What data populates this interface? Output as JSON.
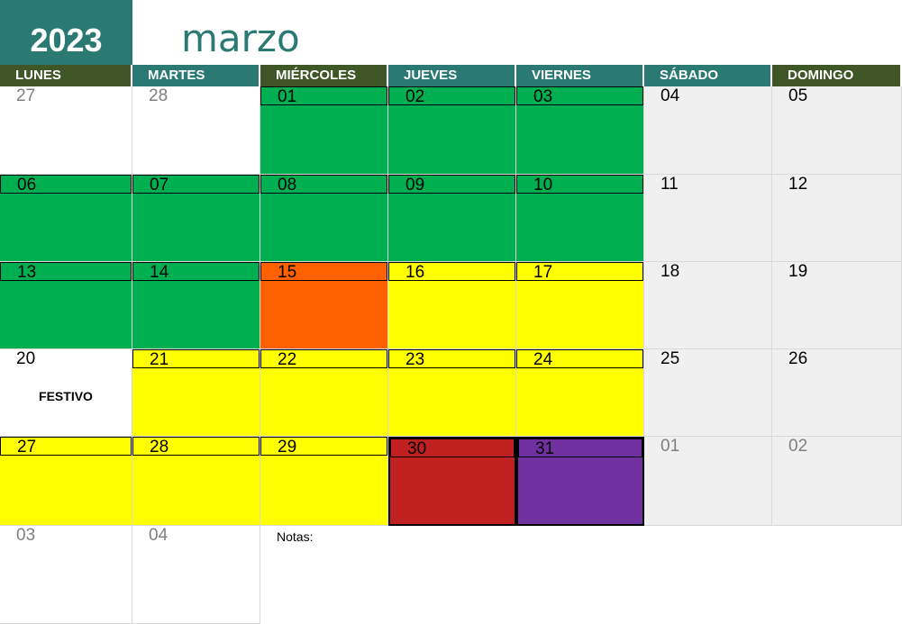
{
  "year": "2023",
  "month": "marzo",
  "colors": {
    "teal": "#2a7a73",
    "olive": "#3f5626",
    "green": "#00b050",
    "yellow": "#ffff00",
    "orange": "#ff6000",
    "red": "#c0201f",
    "purple": "#7030a0",
    "weekend_gray": "#f0f0f0",
    "other_month_text": "#7f7f7f"
  },
  "weekdays": [
    {
      "label": "LUNES",
      "color": "#3f5626"
    },
    {
      "label": "MARTES",
      "color": "#2a7a73"
    },
    {
      "label": "MIÉRCOLES",
      "color": "#3f5626"
    },
    {
      "label": "JUEVES",
      "color": "#2a7a73"
    },
    {
      "label": "VIERNES",
      "color": "#2a7a73"
    },
    {
      "label": "SÁBADO",
      "color": "#2a7a73"
    },
    {
      "label": "DOMINGO",
      "color": "#3f5626"
    }
  ],
  "weeks": [
    [
      {
        "day": "27",
        "other": true,
        "bg": "#ffffff"
      },
      {
        "day": "28",
        "other": true,
        "bg": "#ffffff"
      },
      {
        "day": "01",
        "bg": "#00b050"
      },
      {
        "day": "02",
        "bg": "#00b050"
      },
      {
        "day": "03",
        "bg": "#00b050"
      },
      {
        "day": "04",
        "bg": "#f0f0f0"
      },
      {
        "day": "05",
        "bg": "#f0f0f0"
      }
    ],
    [
      {
        "day": "06",
        "bg": "#00b050"
      },
      {
        "day": "07",
        "bg": "#00b050"
      },
      {
        "day": "08",
        "bg": "#00b050"
      },
      {
        "day": "09",
        "bg": "#00b050"
      },
      {
        "day": "10",
        "bg": "#00b050"
      },
      {
        "day": "11",
        "bg": "#f0f0f0"
      },
      {
        "day": "12",
        "bg": "#f0f0f0"
      }
    ],
    [
      {
        "day": "13",
        "bg": "#00b050"
      },
      {
        "day": "14",
        "bg": "#00b050"
      },
      {
        "day": "15",
        "bg": "#ff6000"
      },
      {
        "day": "16",
        "bg": "#ffff00"
      },
      {
        "day": "17",
        "bg": "#ffff00"
      },
      {
        "day": "18",
        "bg": "#f0f0f0"
      },
      {
        "day": "19",
        "bg": "#f0f0f0"
      }
    ],
    [
      {
        "day": "20",
        "bg": "#ffffff",
        "note": "FESTIVO"
      },
      {
        "day": "21",
        "bg": "#ffff00"
      },
      {
        "day": "22",
        "bg": "#ffff00"
      },
      {
        "day": "23",
        "bg": "#ffff00"
      },
      {
        "day": "24",
        "bg": "#ffff00"
      },
      {
        "day": "25",
        "bg": "#f0f0f0"
      },
      {
        "day": "26",
        "bg": "#f0f0f0"
      }
    ],
    [
      {
        "day": "27",
        "bg": "#ffff00"
      },
      {
        "day": "28",
        "bg": "#ffff00"
      },
      {
        "day": "29",
        "bg": "#ffff00"
      },
      {
        "day": "30",
        "bg": "#c0201f"
      },
      {
        "day": "31",
        "bg": "#7030a0"
      },
      {
        "day": "01",
        "other": true,
        "bg": "#f0f0f0"
      },
      {
        "day": "02",
        "other": true,
        "bg": "#f0f0f0"
      }
    ],
    [
      {
        "day": "03",
        "other": true,
        "bg": "#ffffff"
      },
      {
        "day": "04",
        "other": true,
        "bg": "#ffffff"
      }
    ]
  ],
  "notes_label": "Notas:"
}
